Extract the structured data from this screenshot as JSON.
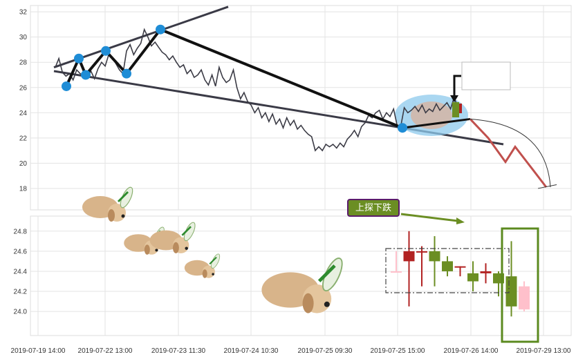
{
  "chart_data": [
    {
      "type": "line",
      "panel": "price",
      "y_ticks": [
        "32",
        "30",
        "28",
        "26",
        "24",
        "22",
        "20",
        "18"
      ],
      "ylim": [
        16.3,
        32.5
      ],
      "grid": true,
      "series": [
        {
          "values": [
            27.6,
            28.3,
            27.2,
            26.9,
            27.1,
            26.6,
            27.4,
            27.1,
            27.0,
            26.8,
            27.3,
            26.7,
            27.5,
            28.0,
            27.7,
            28.6,
            28.4,
            27.9,
            27.4,
            27.1,
            28.9,
            29.4,
            28.6,
            29.1,
            29.5,
            30.6,
            30.0,
            29.3,
            29.6,
            29.2,
            28.8,
            28.6,
            28.2,
            28.5,
            28.0,
            27.6,
            27.8,
            27.1,
            27.4,
            26.8,
            27.0,
            27.4,
            26.6,
            26.2,
            27.0,
            26.1,
            27.6,
            26.8,
            26.4,
            26.6,
            27.4,
            26.0,
            25.1,
            25.6,
            24.9,
            24.6,
            24.0,
            24.4,
            23.6,
            24.0,
            23.3,
            23.9,
            23.1,
            23.5,
            22.8,
            23.6,
            23.0,
            23.4,
            22.7,
            23.0,
            22.6,
            22.3,
            22.1,
            21.0,
            21.3,
            21.0,
            21.5,
            21.3,
            21.5,
            21.2,
            21.6,
            21.3,
            21.9,
            22.2,
            22.6,
            22.1,
            22.9,
            23.2,
            23.8,
            23.6,
            24.0,
            24.2,
            23.5,
            24.0,
            23.7,
            24.3,
            23.0,
            22.9,
            24.4,
            24.0,
            24.2,
            24.5,
            24.1,
            24.6,
            24.0,
            24.3,
            24.1,
            24.7,
            24.2,
            24.5,
            24.8,
            24.3,
            25.2,
            24.5,
            24.7
          ]
        }
      ],
      "projection_path": [
        23.5,
        22.0,
        20.1,
        21.3,
        19.6,
        18.1
      ]
    },
    {
      "type": "candlestick",
      "panel": "intraday",
      "y_ticks": [
        "24.8",
        "24.6",
        "24.4",
        "24.2",
        "24.0"
      ],
      "ylim": [
        23.76,
        24.95
      ],
      "x_ticks": [
        "2019-07-19 14:00",
        "2019-07-22 13:00",
        "2019-07-23 11:30",
        "2019-07-24 10:30",
        "2019-07-25 09:30",
        "2019-07-25 15:00",
        "2019-07-26 14:00",
        "2019-07-29 13:00"
      ],
      "annotation": "上探下跌",
      "candles": [
        {
          "open": 24.4,
          "high": 24.6,
          "low": 24.4,
          "close": 24.4,
          "color": "#ffc0cb"
        },
        {
          "open": 24.6,
          "high": 24.8,
          "low": 24.05,
          "close": 24.5,
          "color": "#b22222"
        },
        {
          "open": 24.6,
          "high": 24.65,
          "low": 24.25,
          "close": 24.6,
          "color": "#b22222"
        },
        {
          "open": 24.5,
          "high": 24.75,
          "low": 24.25,
          "close": 24.6,
          "color": "#6b8e23"
        },
        {
          "open": 24.5,
          "high": 24.55,
          "low": 24.35,
          "close": 24.4,
          "color": "#6b8e23"
        },
        {
          "open": 24.45,
          "high": 24.45,
          "low": 24.35,
          "close": 24.45,
          "color": "#b22222"
        },
        {
          "open": 24.3,
          "high": 24.5,
          "low": 24.2,
          "close": 24.38,
          "color": "#6b8e23"
        },
        {
          "open": 24.38,
          "high": 24.48,
          "low": 24.28,
          "close": 24.4,
          "color": "#b22222"
        },
        {
          "open": 24.38,
          "high": 24.4,
          "low": 24.15,
          "close": 24.28,
          "color": "#6b8e23"
        },
        {
          "open": 24.35,
          "high": 24.7,
          "low": 23.95,
          "close": 24.05,
          "color": "#6b8e23"
        },
        {
          "open": 24.25,
          "high": 24.3,
          "low": 24.0,
          "close": 24.02,
          "color": "#ffc0cb"
        }
      ]
    }
  ]
}
